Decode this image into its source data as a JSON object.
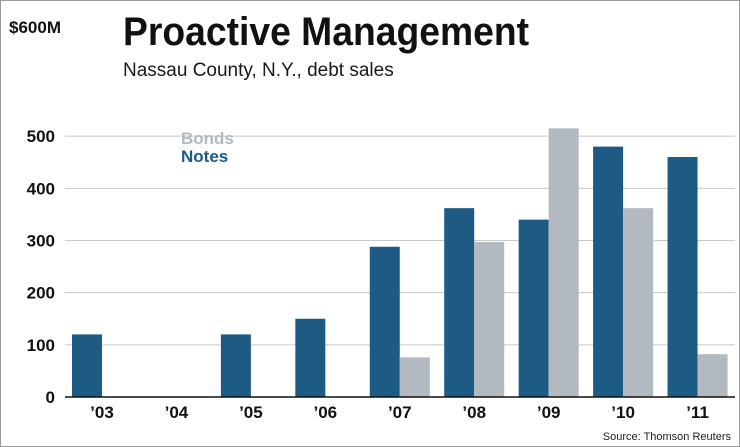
{
  "chart_data": {
    "type": "bar",
    "title": "Proactive Management",
    "subtitle": "Nassau County, N.Y., debt sales",
    "ylabel": "$600M",
    "categories": [
      "’03",
      "’04",
      "’05",
      "’06",
      "’07",
      "’08",
      "’09",
      "’10",
      "’11"
    ],
    "series": [
      {
        "name": "Notes",
        "color": "#1d5a84",
        "values": [
          120,
          0,
          120,
          150,
          288,
          362,
          340,
          480,
          460
        ]
      },
      {
        "name": "Bonds",
        "color": "#b2b9c0",
        "values": [
          0,
          0,
          0,
          0,
          76,
          297,
          515,
          362,
          82
        ]
      }
    ],
    "legend_order": [
      "Bonds",
      "Notes"
    ],
    "ylim": [
      0,
      600
    ],
    "yticks": [
      0,
      100,
      200,
      300,
      400,
      500
    ],
    "grid": true,
    "legend_position": "top-left",
    "source": "Source: Thomson Reuters"
  }
}
